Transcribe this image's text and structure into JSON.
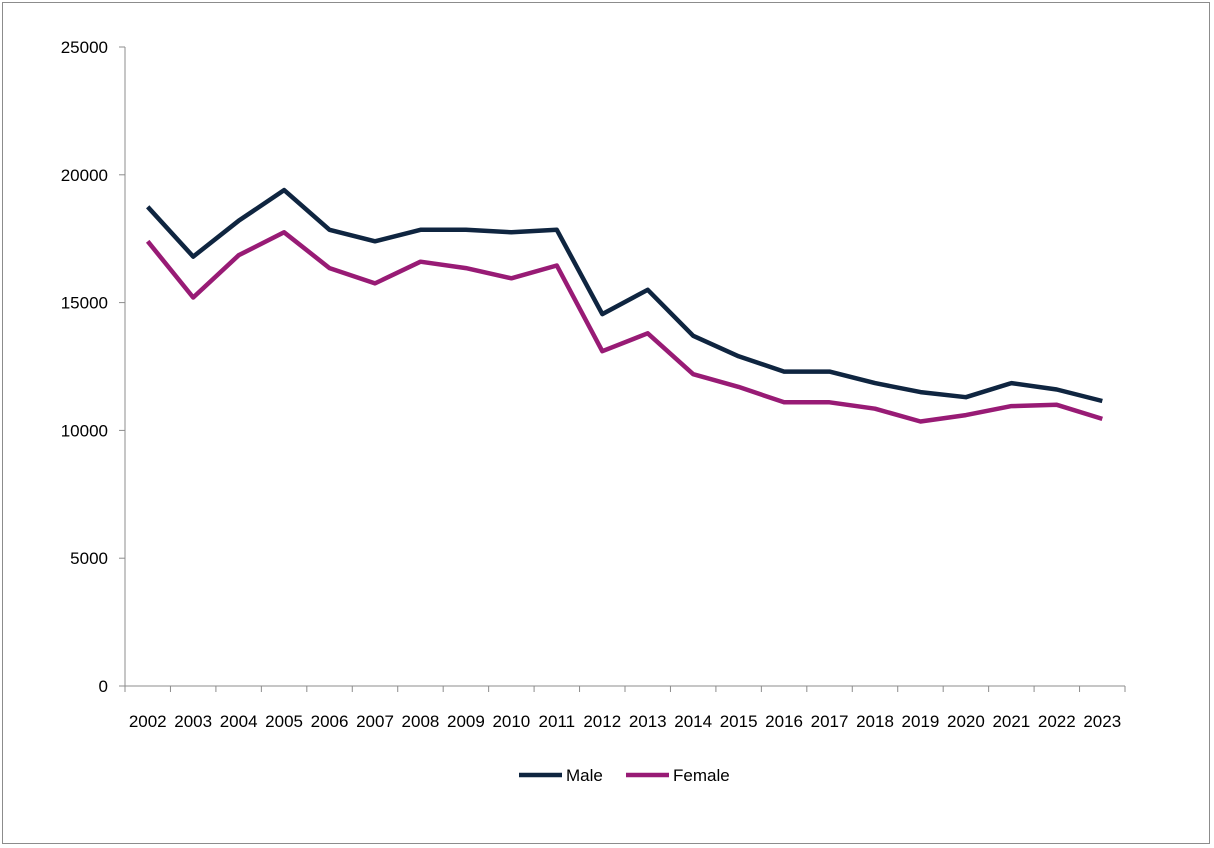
{
  "chart_data": {
    "type": "line",
    "title": "",
    "xlabel": "",
    "ylabel": "",
    "ylim": [
      0,
      25000
    ],
    "yticks": [
      0,
      5000,
      10000,
      15000,
      20000,
      25000
    ],
    "grid": false,
    "legend": "bottom",
    "x": [
      "2002",
      "2003",
      "2004",
      "2005",
      "2006",
      "2007",
      "2008",
      "2009",
      "2010",
      "2011",
      "2012",
      "2013",
      "2014",
      "2015",
      "2016",
      "2017",
      "2018",
      "2019",
      "2020",
      "2021",
      "2022",
      "2023"
    ],
    "series": [
      {
        "name": "Male",
        "color": "#0f2540",
        "values": [
          18750,
          16800,
          18200,
          19400,
          17850,
          17400,
          17850,
          17850,
          17750,
          17850,
          14550,
          15500,
          13700,
          12900,
          12300,
          12300,
          11850,
          11500,
          11300,
          11850,
          11600,
          11150
        ]
      },
      {
        "name": "Female",
        "color": "#981b75",
        "values": [
          17400,
          15200,
          16850,
          17750,
          16350,
          15750,
          16600,
          16350,
          15950,
          16450,
          13100,
          13800,
          12200,
          11700,
          11100,
          11100,
          10850,
          10350,
          10600,
          10950,
          11000,
          10450
        ]
      }
    ]
  }
}
